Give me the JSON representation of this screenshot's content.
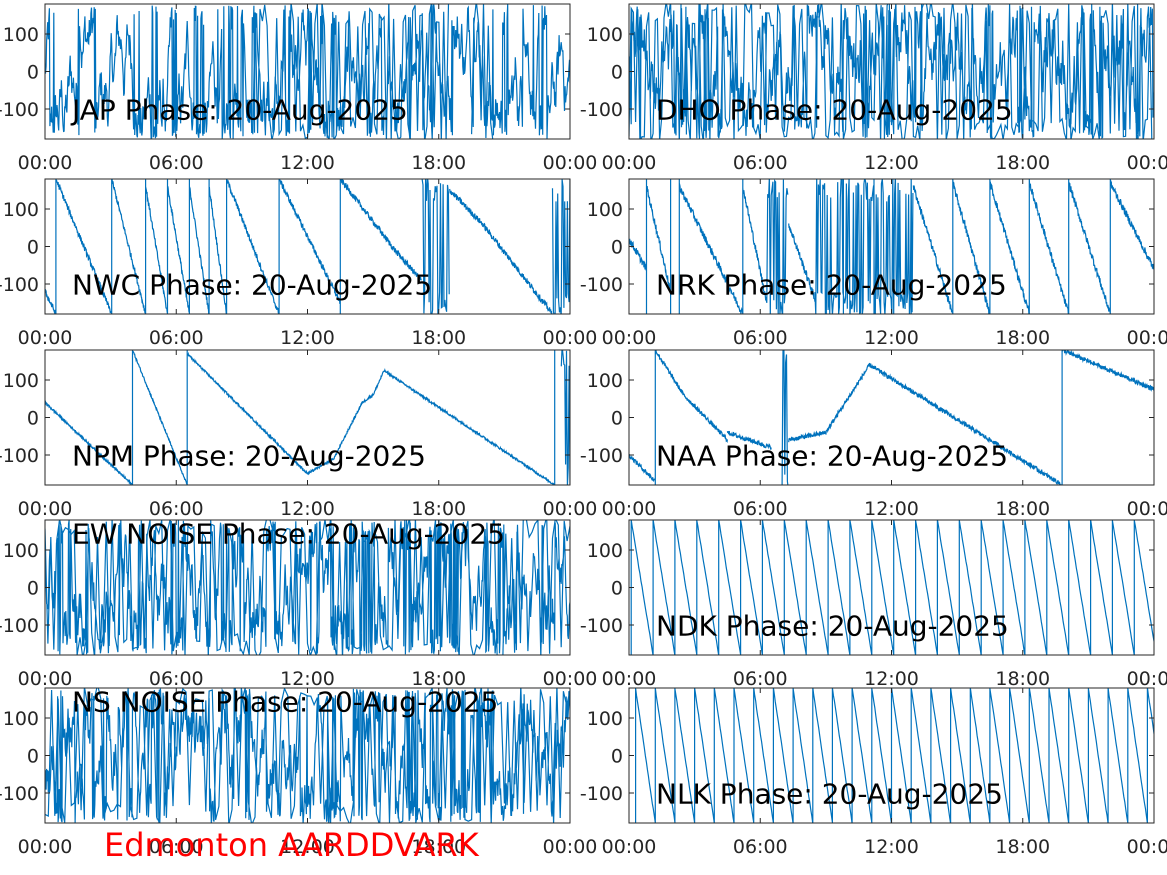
{
  "figure": {
    "footer": "Edmonton AARDDVARK",
    "footer_color": "#ff0000",
    "line_color": "#0072bd"
  },
  "chart_data": [
    {
      "type": "line",
      "title": "JAP Phase: 20-Aug-2025",
      "pattern": "noise",
      "density": 0.55,
      "dense_ranges": [
        [
          9.5,
          18.5
        ],
        [
          19.5,
          20.5
        ]
      ],
      "xticklabels": [
        "00:00",
        "06:00",
        "12:00",
        "18:00",
        "00:00"
      ],
      "xlim": [
        0,
        24
      ],
      "yticklabels": [
        "100",
        "0",
        "-100"
      ],
      "yticks": [
        100,
        0,
        -100
      ],
      "ylim": [
        -180,
        180
      ]
    },
    {
      "type": "line",
      "title": "DHO Phase: 20-Aug-2025",
      "pattern": "noise",
      "density": 0.6,
      "dense_ranges": [
        [
          0,
          24
        ]
      ],
      "xticklabels": [
        "00:00",
        "06:00",
        "12:00",
        "18:00",
        "00:00"
      ],
      "xlim": [
        0,
        24
      ],
      "yticklabels": [
        "100",
        "0",
        "-100"
      ],
      "yticks": [
        100,
        0,
        -100
      ],
      "ylim": [
        -180,
        180
      ]
    },
    {
      "type": "line",
      "title": "NWC Phase: 20-Aug-2025",
      "pattern": "wraps",
      "noise": 8,
      "wrap_times": [
        0.5,
        3.05,
        4.6,
        5.6,
        6.6,
        7.5,
        8.3,
        10.7,
        13.5
      ],
      "dense_ranges": [
        [
          17.2,
          18.5
        ],
        [
          23.2,
          24
        ]
      ],
      "segments": [
        {
          "x": [
            0,
            0.5
          ],
          "y": [
            -120,
            -180
          ]
        },
        {
          "x": [
            0.5,
            3.05
          ],
          "y": [
            180,
            -180
          ]
        },
        {
          "x": [
            3.05,
            4.6
          ],
          "y": [
            180,
            -180
          ]
        },
        {
          "x": [
            4.6,
            5.6
          ],
          "y": [
            160,
            -180
          ]
        },
        {
          "x": [
            5.6,
            6.6
          ],
          "y": [
            160,
            -180
          ]
        },
        {
          "x": [
            6.6,
            7.5
          ],
          "y": [
            160,
            -180
          ]
        },
        {
          "x": [
            7.5,
            8.3
          ],
          "y": [
            160,
            -180
          ]
        },
        {
          "x": [
            8.3,
            10.7
          ],
          "y": [
            180,
            -180
          ]
        },
        {
          "x": [
            10.7,
            13.5
          ],
          "y": [
            180,
            -150
          ]
        },
        {
          "x": [
            13.5,
            16.0
          ],
          "y": [
            180,
            -10
          ]
        },
        {
          "x": [
            16.0,
            17.2
          ],
          "y": [
            -10,
            -90
          ]
        },
        {
          "x": [
            18.5,
            20.0
          ],
          "y": [
            150,
            60
          ]
        },
        {
          "x": [
            20.0,
            23.2
          ],
          "y": [
            60,
            -180
          ]
        }
      ],
      "xticklabels": [
        "00:00",
        "06:00",
        "12:00",
        "18:00",
        "00:00"
      ],
      "xlim": [
        0,
        24
      ],
      "yticklabels": [
        "100",
        "0",
        "-100"
      ],
      "yticks": [
        100,
        0,
        -100
      ],
      "ylim": [
        -180,
        180
      ]
    },
    {
      "type": "line",
      "title": "NRK Phase: 20-Aug-2025",
      "pattern": "wraps",
      "noise": 10,
      "wrap_times": [
        0.8,
        1.9,
        2.3,
        5.2,
        9.8,
        11.2,
        12.9,
        14.8,
        16.5,
        18.3,
        20.1,
        22.0
      ],
      "dense_ranges": [
        [
          6.3,
          7.3
        ],
        [
          8.5,
          13.0
        ]
      ],
      "segments": [
        {
          "x": [
            0,
            0.8
          ],
          "y": [
            20,
            -60
          ]
        },
        {
          "x": [
            0.8,
            1.9
          ],
          "y": [
            160,
            -120
          ]
        },
        {
          "x": [
            2.3,
            5.2
          ],
          "y": [
            160,
            -180
          ]
        },
        {
          "x": [
            5.2,
            6.3
          ],
          "y": [
            160,
            -150
          ]
        },
        {
          "x": [
            7.3,
            8.5
          ],
          "y": [
            60,
            -140
          ]
        },
        {
          "x": [
            13.0,
            14.8
          ],
          "y": [
            160,
            -180
          ]
        },
        {
          "x": [
            14.8,
            16.5
          ],
          "y": [
            170,
            -180
          ]
        },
        {
          "x": [
            16.5,
            18.3
          ],
          "y": [
            170,
            -180
          ]
        },
        {
          "x": [
            18.3,
            20.1
          ],
          "y": [
            170,
            -180
          ]
        },
        {
          "x": [
            20.1,
            22.0
          ],
          "y": [
            170,
            -180
          ]
        },
        {
          "x": [
            22.0,
            24.0
          ],
          "y": [
            170,
            -60
          ]
        }
      ],
      "xticklabels": [
        "00:00",
        "06:00",
        "12:00",
        "18:00",
        "00:00"
      ],
      "xlim": [
        0,
        24
      ],
      "yticklabels": [
        "100",
        "0",
        "-100"
      ],
      "yticks": [
        100,
        0,
        -100
      ],
      "ylim": [
        -180,
        180
      ]
    },
    {
      "type": "line",
      "title": "NPM Phase: 20-Aug-2025",
      "pattern": "wraps",
      "noise": 3,
      "wrap_times": [
        4.0,
        6.5,
        23.3
      ],
      "dense_ranges": [
        [
          23.6,
          24
        ]
      ],
      "segments": [
        {
          "x": [
            0,
            4.0
          ],
          "y": [
            40,
            -180
          ]
        },
        {
          "x": [
            4.0,
            6.5
          ],
          "y": [
            180,
            -180
          ]
        },
        {
          "x": [
            6.5,
            12.0
          ],
          "y": [
            170,
            -150
          ]
        },
        {
          "x": [
            12.0,
            13.2
          ],
          "y": [
            -150,
            -110
          ]
        },
        {
          "x": [
            13.2,
            14.5
          ],
          "y": [
            -110,
            40
          ]
        },
        {
          "x": [
            14.5,
            15.0
          ],
          "y": [
            40,
            60
          ]
        },
        {
          "x": [
            15.0,
            15.5
          ],
          "y": [
            60,
            125
          ]
        },
        {
          "x": [
            15.5,
            23.3
          ],
          "y": [
            125,
            -180
          ]
        }
      ],
      "xticklabels": [
        "00:00",
        "06:00",
        "12:00",
        "18:00",
        "00:00"
      ],
      "xlim": [
        0,
        24
      ],
      "yticklabels": [
        "100",
        "0",
        "-100"
      ],
      "yticks": [
        100,
        0,
        -100
      ],
      "ylim": [
        -180,
        180
      ]
    },
    {
      "type": "line",
      "title": "NAA Phase: 20-Aug-2025",
      "pattern": "wraps",
      "noise": 6,
      "wrap_times": [
        1.2,
        19.8
      ],
      "dense_ranges": [
        [
          7.0,
          7.3
        ]
      ],
      "segments": [
        {
          "x": [
            0,
            1.2
          ],
          "y": [
            -100,
            -170
          ]
        },
        {
          "x": [
            1.2,
            2.5
          ],
          "y": [
            180,
            60
          ]
        },
        {
          "x": [
            2.5,
            4.5
          ],
          "y": [
            60,
            -60
          ]
        },
        {
          "x": [
            4.5,
            6.5
          ],
          "y": [
            -40,
            -80
          ]
        },
        {
          "x": [
            7.3,
            9.0
          ],
          "y": [
            -60,
            -40
          ]
        },
        {
          "x": [
            9.0,
            11.0
          ],
          "y": [
            -40,
            140
          ]
        },
        {
          "x": [
            11.0,
            19.8
          ],
          "y": [
            140,
            -180
          ]
        },
        {
          "x": [
            19.8,
            24.0
          ],
          "y": [
            180,
            75
          ]
        }
      ],
      "xticklabels": [
        "00:00",
        "06:00",
        "12:00",
        "18:00",
        "00:00"
      ],
      "xlim": [
        0,
        24
      ],
      "yticklabels": [
        "100",
        "0",
        "-100"
      ],
      "yticks": [
        100,
        0,
        -100
      ],
      "ylim": [
        -180,
        180
      ]
    },
    {
      "type": "line",
      "title": "EW NOISE Phase: 20-Aug-2025",
      "pattern": "noise",
      "density": 0.45,
      "dense_ranges": [
        [
          0,
          24
        ]
      ],
      "xticklabels": [
        "00:00",
        "06:00",
        "12:00",
        "18:00",
        "00:00"
      ],
      "xlim": [
        0,
        24
      ],
      "yticklabels": [
        "100",
        "0",
        "-100"
      ],
      "yticks": [
        100,
        0,
        -100
      ],
      "ylim": [
        -180,
        180
      ]
    },
    {
      "type": "line",
      "title": "NDK Phase: 20-Aug-2025",
      "pattern": "sawtooth",
      "period": 1.0,
      "noise": 2,
      "start": 0.1,
      "xticklabels": [
        "00:00",
        "06:00",
        "12:00",
        "18:00",
        "00:00"
      ],
      "xlim": [
        0,
        24
      ],
      "yticklabels": [
        "100",
        "0",
        "-100"
      ],
      "yticks": [
        100,
        0,
        -100
      ],
      "ylim": [
        -180,
        180
      ]
    },
    {
      "type": "line",
      "title": "NS NOISE Phase: 20-Aug-2025",
      "pattern": "noise",
      "density": 0.4,
      "dense_ranges": [
        [
          0,
          24
        ]
      ],
      "xticklabels": [
        "00:00",
        "06:00",
        "12:00",
        "18:00",
        "00:00"
      ],
      "xlim": [
        0,
        24
      ],
      "yticklabels": [
        "100",
        "0",
        "-100"
      ],
      "yticks": [
        100,
        0,
        -100
      ],
      "ylim": [
        -180,
        180
      ]
    },
    {
      "type": "line",
      "title": "NLK Phase: 20-Aug-2025",
      "pattern": "sawtooth",
      "period": 0.9,
      "noise": 2,
      "start": 0.3,
      "xticklabels": [
        "00:00",
        "06:00",
        "12:00",
        "18:00",
        "00:00"
      ],
      "xlim": [
        0,
        24
      ],
      "yticklabels": [
        "100",
        "0",
        "-100"
      ],
      "yticks": [
        100,
        0,
        -100
      ],
      "ylim": [
        -180,
        180
      ]
    }
  ]
}
